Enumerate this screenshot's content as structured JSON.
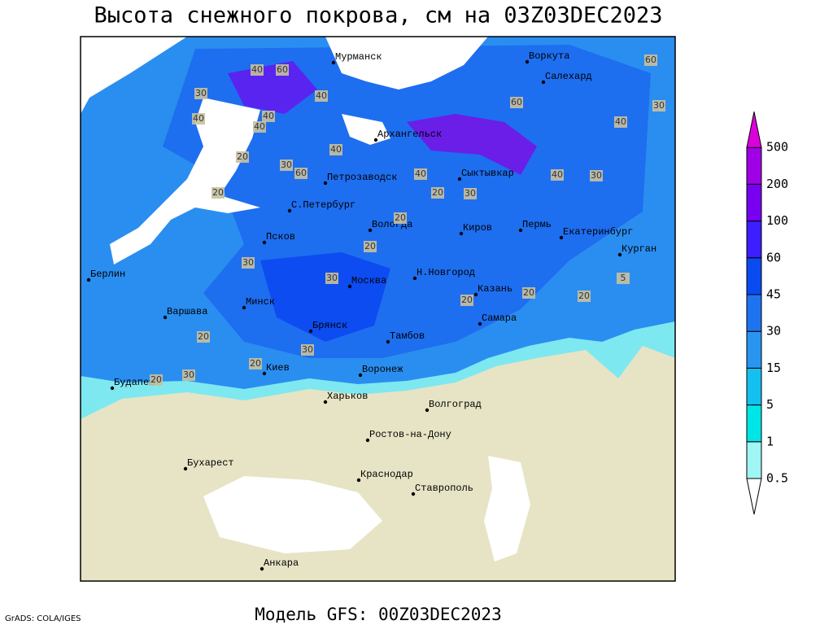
{
  "header": {
    "title": "Высота снежного покрова, см на 03Z03DEC2023"
  },
  "footer": {
    "model": "Модель GFS: 00Z03DEC2023",
    "credit": "GrADS: COLA/IGES"
  },
  "legend": {
    "levels": [
      0.5,
      1,
      5,
      15,
      30,
      45,
      60,
      100,
      200,
      500
    ],
    "colors": [
      "#ffffff",
      "#a0f5f5",
      "#00e6e6",
      "#14c0f0",
      "#2896f0",
      "#1e73f0",
      "#0a4bf0",
      "#3c1eff",
      "#7800f0",
      "#a000e6",
      "#dc00dc"
    ]
  },
  "cities": [
    "Мурманск",
    "Воркута",
    "Салехард",
    "Архангельск",
    "Петрозаводск",
    "Сыктывкар",
    "С.Петербург",
    "Вологда",
    "Киров",
    "Пермь",
    "Екатеринбург",
    "Курган",
    "Псков",
    "Берлин",
    "Н.Новгород",
    "Москва",
    "Казань",
    "Минск",
    "Варшава",
    "Самара",
    "Брянск",
    "Тамбов",
    "Киев",
    "Воронеж",
    "Будапешт",
    "Харьков",
    "Волгоград",
    "Ростов-на-Дону",
    "Бухарест",
    "Краснодар",
    "Ставрополь",
    "Анкара"
  ],
  "contour_labels": [
    "40",
    "60",
    "30",
    "40",
    "40",
    "20",
    "30",
    "40",
    "60",
    "40",
    "40",
    "60",
    "30",
    "40",
    "20",
    "30",
    "20",
    "40",
    "30",
    "20",
    "40",
    "30",
    "20",
    "5",
    "30",
    "20",
    "20",
    "30",
    "20",
    "20",
    "20",
    "30",
    "20",
    "60"
  ]
}
